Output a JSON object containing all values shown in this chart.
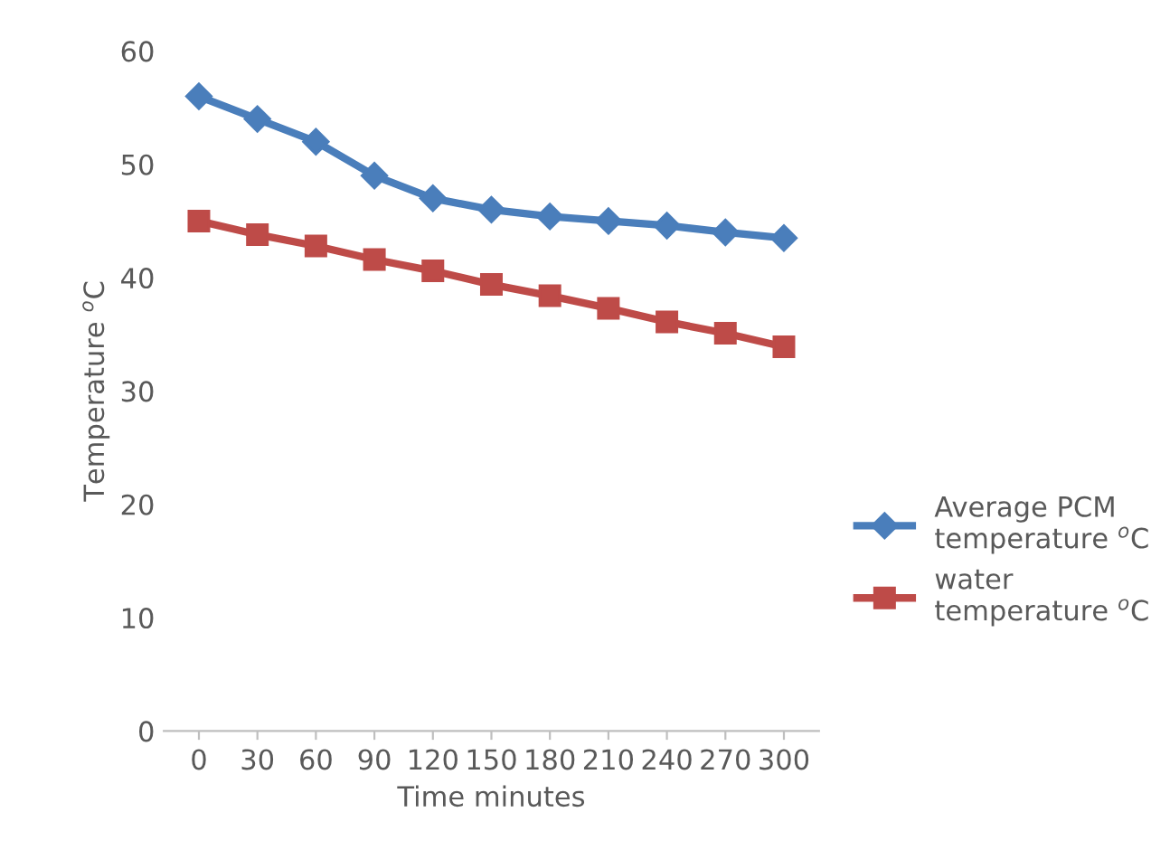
{
  "chart_data": {
    "type": "line",
    "xlabel": "Time minutes",
    "ylabel": "Temperature $^{o}$C",
    "categories": [
      "0",
      "30",
      "60",
      "90",
      "120",
      "150",
      "180",
      "210",
      "240",
      "270",
      "300"
    ],
    "series": [
      {
        "name": "Average PCM\ntemperature $^{o}$C",
        "color": "#4a7ebb",
        "marker": "diamond",
        "values": [
          56,
          54,
          52,
          49,
          47,
          46,
          45.4,
          45,
          44.6,
          44,
          43.5
        ]
      },
      {
        "name": "water\ntemperature $^{o}$C",
        "color": "#be4b48",
        "marker": "square",
        "values": [
          45,
          43.8,
          42.8,
          41.6,
          40.6,
          39.4,
          38.4,
          37.3,
          36.1,
          35.1,
          33.9
        ]
      }
    ],
    "ylim": [
      0,
      60
    ],
    "yticks": [
      0,
      10,
      20,
      30,
      40,
      50,
      60
    ],
    "grid": false,
    "legend": "right",
    "line_style": "solid"
  }
}
